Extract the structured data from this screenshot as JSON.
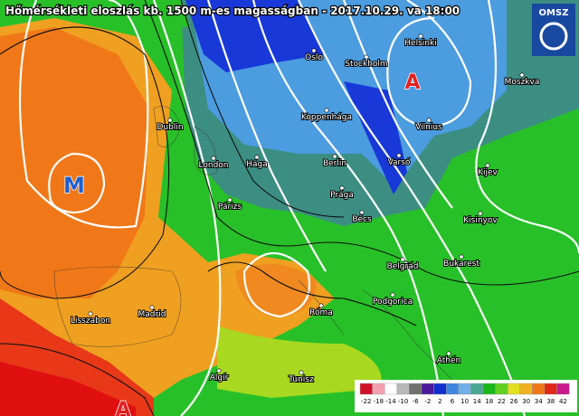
{
  "title": "Hőmérsékleti eloszlás kb. 1500 m-es magasságban - 2017.10.29. va 18:00",
  "logo": "OMSZ",
  "cities": [
    "Helsinki",
    "Oslo",
    "Stockholm",
    "Moszkva",
    "Koppenhága",
    "Vilnius",
    "Dublin",
    "London",
    "Hága",
    "Berlin",
    "Varsó",
    "Kijev",
    "Párizs",
    "Prága",
    "Bécs",
    "Kisinyov",
    "Belgrád",
    "Bukarest",
    "Podgorica",
    "Madrid",
    "Róma",
    "Lisszabon",
    "Athén",
    "Algír",
    "Tunisz"
  ],
  "pressure_centers": [
    {
      "label": "M",
      "color": "#1f5fd0"
    },
    {
      "label": "A",
      "color": "#e02020"
    },
    {
      "label": "A",
      "color": "#e02020"
    }
  ],
  "legend": {
    "values": [
      -22,
      -18,
      -14,
      -10,
      -6,
      -2,
      2,
      6,
      10,
      14,
      18,
      22,
      26,
      30,
      34,
      38,
      42
    ],
    "colors": [
      "#d0102a",
      "#f4a0b0",
      "#ffffff",
      "#b8b8b8",
      "#707070",
      "#4a1a9a",
      "#1030d0",
      "#3e86e0",
      "#6fb0e8",
      "#4aa890",
      "#18b818",
      "#60d020",
      "#e0e020",
      "#f0b020",
      "#f07818",
      "#e02818",
      "#c81a8c"
    ]
  }
}
